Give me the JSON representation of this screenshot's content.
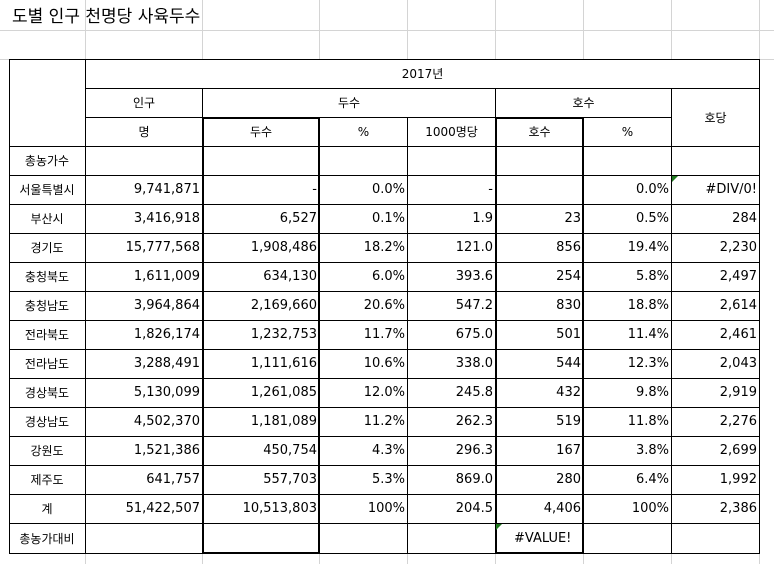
{
  "title": "도별 인구 천명당 사육두수",
  "header": {
    "year": "2017년",
    "population": "인구",
    "population_unit": "명",
    "heads_group": "두수",
    "heads": "두수",
    "heads_pct": "%",
    "per_1000": "1000명당",
    "farms_group": "호수",
    "farms": "호수",
    "farms_pct": "%",
    "per_farm": "호당"
  },
  "total_farms_label": "총농가수",
  "rows": [
    {
      "region": "서울특별시",
      "pop": "9,741,871",
      "heads": "-",
      "heads_pct": "0.0%",
      "per1000": "-",
      "farms": "",
      "farms_pct": "0.0%",
      "per_farm": "#DIV/0!"
    },
    {
      "region": "부산시",
      "pop": "3,416,918",
      "heads": "6,527",
      "heads_pct": "0.1%",
      "per1000": "1.9",
      "farms": "23",
      "farms_pct": "0.5%",
      "per_farm": "284"
    },
    {
      "region": "경기도",
      "pop": "15,777,568",
      "heads": "1,908,486",
      "heads_pct": "18.2%",
      "per1000": "121.0",
      "farms": "856",
      "farms_pct": "19.4%",
      "per_farm": "2,230"
    },
    {
      "region": "충청북도",
      "pop": "1,611,009",
      "heads": "634,130",
      "heads_pct": "6.0%",
      "per1000": "393.6",
      "farms": "254",
      "farms_pct": "5.8%",
      "per_farm": "2,497"
    },
    {
      "region": "충청남도",
      "pop": "3,964,864",
      "heads": "2,169,660",
      "heads_pct": "20.6%",
      "per1000": "547.2",
      "farms": "830",
      "farms_pct": "18.8%",
      "per_farm": "2,614"
    },
    {
      "region": "전라북도",
      "pop": "1,826,174",
      "heads": "1,232,753",
      "heads_pct": "11.7%",
      "per1000": "675.0",
      "farms": "501",
      "farms_pct": "11.4%",
      "per_farm": "2,461"
    },
    {
      "region": "전라남도",
      "pop": "3,288,491",
      "heads": "1,111,616",
      "heads_pct": "10.6%",
      "per1000": "338.0",
      "farms": "544",
      "farms_pct": "12.3%",
      "per_farm": "2,043"
    },
    {
      "region": "경상북도",
      "pop": "5,130,099",
      "heads": "1,261,085",
      "heads_pct": "12.0%",
      "per1000": "245.8",
      "farms": "432",
      "farms_pct": "9.8%",
      "per_farm": "2,919"
    },
    {
      "region": "경상남도",
      "pop": "4,502,370",
      "heads": "1,181,089",
      "heads_pct": "11.2%",
      "per1000": "262.3",
      "farms": "519",
      "farms_pct": "11.8%",
      "per_farm": "2,276"
    },
    {
      "region": "강원도",
      "pop": "1,521,386",
      "heads": "450,754",
      "heads_pct": "4.3%",
      "per1000": "296.3",
      "farms": "167",
      "farms_pct": "3.8%",
      "per_farm": "2,699"
    },
    {
      "region": "제주도",
      "pop": "641,757",
      "heads": "557,703",
      "heads_pct": "5.3%",
      "per1000": "869.0",
      "farms": "280",
      "farms_pct": "6.4%",
      "per_farm": "1,992"
    },
    {
      "region": "계",
      "pop": "51,422,507",
      "heads": "10,513,803",
      "heads_pct": "100%",
      "per1000": "204.5",
      "farms": "4,406",
      "farms_pct": "100%",
      "per_farm": "2,386"
    }
  ],
  "ratio_row": {
    "label": "총농가대비",
    "farms": "#VALUE!"
  }
}
